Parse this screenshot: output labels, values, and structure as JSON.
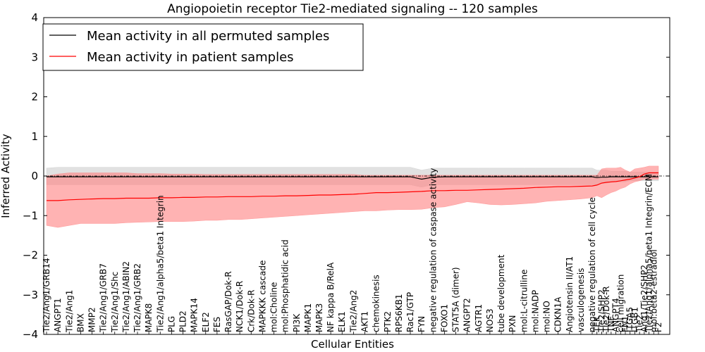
{
  "chart_data": {
    "type": "line",
    "title": "Angiopoietin receptor Tie2-mediated signaling -- 120 samples",
    "xlabel": "Cellular Entities",
    "ylabel": "Inferred Activity",
    "ylim": [
      -4,
      4
    ],
    "yticks": [
      -4,
      -3,
      -2,
      -1,
      0,
      1,
      2,
      3,
      4
    ],
    "legend_position": "top-left",
    "legend": [
      "Mean activity in all permuted samples",
      "Mean activity in patient samples"
    ],
    "colors": {
      "permuted": "#000000",
      "patient": "#ff0000",
      "permuted_band": "#c8c8c8",
      "patient_band": "#ff8080"
    },
    "categories": [
      "Tie2/Ang1/GRB14",
      "ANGPT1",
      "Tie2/Ang1",
      "BMX",
      "MMP2",
      "Tie2/Ang1/GRB7",
      "Tie2/Ang1/Shc",
      "Tie2/Ang1/ABIN2",
      "Tie2/Ang1/GRB2",
      "MAPK8",
      "Tie2/Ang1/alpha5/beta1 Integrin",
      "PLG",
      "PLD2",
      "MAPK14",
      "ELF2",
      "FES",
      "RasGAP/Dok-R",
      "NCK1/Dok-R",
      "Crk/Dok-R",
      "MAPKKK cascade",
      "mol:Choline",
      "mol:Phosphatidic acid",
      "PI3K",
      "MAPK1",
      "MAPK3",
      "NF kappa B/RelA",
      "ELK1",
      "Tie2/Ang2",
      "AKT1",
      "chemokinesis",
      "PTK2",
      "RPS6KB1",
      "Rac1/GTP",
      "FYN",
      "negative regulation of caspase activity",
      "FOXO1",
      "STAT5A (dimer)",
      "ANGPT2",
      "AGTR1",
      "NOS3",
      "tube development",
      "PXN",
      "mol:L-citrulline",
      "mol:NADP",
      "mol:NO",
      "CDKN1A",
      "Angiotensin II/AT1",
      "vasculogenesis",
      "negative regulation of cell cycle",
      "TEK",
      "Tie2/SHP2",
      "Tie2/Dok-R",
      "TNF",
      "ANGPT4",
      "cell migration",
      "FN1",
      "ITGA5",
      "ITGB1",
      "Tie2",
      "Ang1/Tie2/SHP2",
      "Tie2/Ang1/alpha5/beta1 Integrin/ECM",
      "mol:beta2-estradiol",
      "F2"
    ],
    "series": [
      {
        "name": "Mean activity in all permuted samples",
        "values": [
          -0.02,
          -0.02,
          -0.02,
          -0.02,
          -0.02,
          -0.02,
          -0.02,
          -0.02,
          -0.02,
          -0.02,
          -0.02,
          -0.02,
          -0.02,
          -0.02,
          -0.02,
          -0.02,
          -0.02,
          -0.02,
          -0.02,
          -0.02,
          -0.02,
          -0.02,
          -0.02,
          -0.02,
          -0.02,
          -0.02,
          -0.02,
          -0.02,
          -0.02,
          -0.02,
          -0.02,
          -0.02,
          -0.02,
          -0.08,
          -0.03,
          -0.02,
          -0.02,
          -0.02,
          -0.02,
          -0.02,
          -0.02,
          -0.02,
          -0.02,
          -0.02,
          -0.02,
          -0.02,
          -0.02,
          -0.02,
          -0.02,
          -0.04,
          -0.03,
          -0.03,
          -0.02,
          -0.02,
          -0.02,
          -0.02,
          -0.02,
          -0.02,
          -0.02,
          -0.02,
          -0.02,
          -0.02,
          -0.02
        ],
        "lower": [
          -0.22,
          -0.22,
          -0.22,
          -0.22,
          -0.22,
          -0.22,
          -0.22,
          -0.22,
          -0.22,
          -0.22,
          -0.22,
          -0.22,
          -0.22,
          -0.22,
          -0.22,
          -0.22,
          -0.22,
          -0.22,
          -0.22,
          -0.22,
          -0.22,
          -0.22,
          -0.22,
          -0.22,
          -0.22,
          -0.22,
          -0.22,
          -0.22,
          -0.22,
          -0.22,
          -0.22,
          -0.22,
          -0.22,
          -0.28,
          -0.22,
          -0.22,
          -0.22,
          -0.22,
          -0.22,
          -0.22,
          -0.22,
          -0.22,
          -0.22,
          -0.22,
          -0.22,
          -0.22,
          -0.22,
          -0.22,
          -0.22,
          -0.22,
          -0.18,
          -0.18,
          -0.15,
          -0.15,
          -0.15,
          -0.15,
          -0.12,
          -0.12,
          -0.12,
          -0.12,
          -0.12,
          -0.12,
          -0.12
        ],
        "upper": [
          0.2,
          0.22,
          0.22,
          0.22,
          0.22,
          0.22,
          0.22,
          0.22,
          0.22,
          0.22,
          0.22,
          0.22,
          0.22,
          0.22,
          0.22,
          0.22,
          0.22,
          0.22,
          0.22,
          0.22,
          0.22,
          0.22,
          0.22,
          0.22,
          0.22,
          0.22,
          0.22,
          0.22,
          0.22,
          0.22,
          0.22,
          0.22,
          0.22,
          0.15,
          0.2,
          0.2,
          0.2,
          0.2,
          0.2,
          0.2,
          0.2,
          0.2,
          0.2,
          0.2,
          0.2,
          0.2,
          0.2,
          0.2,
          0.2,
          0.15,
          0.15,
          0.15,
          0.12,
          0.12,
          0.12,
          0.12,
          0.1,
          0.1,
          0.1,
          0.1,
          0.1,
          0.1,
          0.1
        ]
      },
      {
        "name": "Mean activity in patient samples",
        "values": [
          -0.62,
          -0.62,
          -0.6,
          -0.59,
          -0.58,
          -0.57,
          -0.57,
          -0.56,
          -0.56,
          -0.56,
          -0.55,
          -0.55,
          -0.54,
          -0.54,
          -0.53,
          -0.53,
          -0.52,
          -0.52,
          -0.52,
          -0.51,
          -0.51,
          -0.5,
          -0.5,
          -0.49,
          -0.48,
          -0.48,
          -0.47,
          -0.46,
          -0.44,
          -0.42,
          -0.42,
          -0.41,
          -0.4,
          -0.39,
          -0.37,
          -0.37,
          -0.36,
          -0.36,
          -0.35,
          -0.34,
          -0.33,
          -0.32,
          -0.31,
          -0.29,
          -0.28,
          -0.27,
          -0.27,
          -0.26,
          -0.25,
          -0.23,
          -0.18,
          -0.16,
          -0.15,
          -0.14,
          -0.12,
          -0.1,
          -0.08,
          -0.05,
          -0.02,
          0.05,
          0.08,
          0.08,
          0.08
        ],
        "lower": [
          -1.25,
          -1.3,
          -1.25,
          -1.2,
          -1.2,
          -1.2,
          -1.2,
          -1.18,
          -1.17,
          -1.16,
          -1.15,
          -1.15,
          -1.15,
          -1.14,
          -1.12,
          -1.12,
          -1.1,
          -1.1,
          -1.08,
          -1.06,
          -1.04,
          -1.02,
          -1.0,
          -0.98,
          -0.96,
          -0.94,
          -0.92,
          -0.9,
          -0.88,
          -0.88,
          -0.86,
          -0.85,
          -0.85,
          -0.84,
          -0.8,
          -0.78,
          -0.72,
          -0.65,
          -0.68,
          -0.72,
          -0.73,
          -0.72,
          -0.7,
          -0.68,
          -0.64,
          -0.62,
          -0.6,
          -0.58,
          -0.55,
          -0.5,
          -0.55,
          -0.48,
          -0.42,
          -0.38,
          -0.32,
          -0.28,
          -0.2,
          -0.15,
          -0.12,
          -0.08,
          -0.08,
          -0.08,
          -0.08
        ],
        "upper": [
          0.0,
          0.05,
          0.08,
          0.08,
          0.08,
          0.08,
          0.08,
          0.08,
          0.06,
          0.06,
          0.06,
          0.05,
          0.05,
          0.05,
          0.04,
          0.04,
          0.04,
          0.04,
          0.04,
          0.04,
          0.04,
          0.04,
          0.04,
          0.04,
          0.04,
          0.04,
          0.04,
          0.04,
          0.02,
          0.02,
          0.02,
          0.02,
          0.02,
          0.02,
          0.02,
          0.02,
          0.02,
          0.02,
          0.02,
          0.02,
          0.02,
          0.02,
          0.02,
          0.02,
          0.02,
          0.02,
          0.02,
          0.02,
          0.02,
          0.02,
          0.18,
          0.2,
          0.2,
          0.2,
          0.22,
          0.15,
          0.1,
          0.18,
          0.2,
          0.22,
          0.25,
          0.25,
          0.25
        ]
      }
    ]
  }
}
